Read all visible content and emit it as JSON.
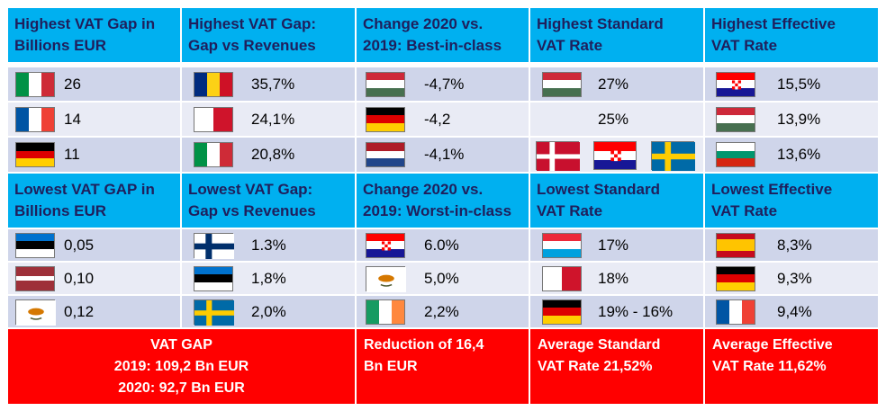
{
  "headers_top": [
    "Highest VAT Gap in\nBillions EUR",
    "Highest VAT Gap:\nGap vs Revenues",
    "Change 2020 vs.\n2019: Best-in-class",
    "Highest Standard\nVAT Rate",
    "Highest Effective\nVAT Rate"
  ],
  "headers_bottom": [
    "Lowest VAT GAP in\nBillions EUR",
    "Lowest VAT Gap:\nGap vs Revenues",
    "Change 2020 vs.\n2019: Worst-in-class",
    "Lowest Standard\nVAT Rate",
    "Lowest Effective\nVAT Rate"
  ],
  "top_rows": [
    [
      {
        "flags": [
          "italy-flag"
        ],
        "value": "26"
      },
      {
        "flags": [
          "romania-flag"
        ],
        "value": "35,7%"
      },
      {
        "flags": [
          "hungary-flag"
        ],
        "value": "-4,7%"
      },
      {
        "flags": [
          "hungary-flag"
        ],
        "value": "27%"
      },
      {
        "flags": [
          "croatia-flag"
        ],
        "value": "15,5%"
      }
    ],
    [
      {
        "flags": [
          "france-flag"
        ],
        "value": "14"
      },
      {
        "flags": [
          "malta-flag"
        ],
        "value": "24,1%"
      },
      {
        "flags": [
          "germany-flag"
        ],
        "value": "-4,2"
      },
      {
        "flags": [],
        "value": "25%"
      },
      {
        "flags": [
          "hungary-flag"
        ],
        "value": "13,9%"
      }
    ],
    [
      {
        "flags": [
          "germany-flag"
        ],
        "value": "11"
      },
      {
        "flags": [
          "italy-flag"
        ],
        "value": "20,8%"
      },
      {
        "flags": [
          "netherlands-flag"
        ],
        "value": "-4,1%"
      },
      {
        "flags": [
          "denmark-flag",
          "croatia-flag",
          "sweden-flag"
        ],
        "value": ""
      },
      {
        "flags": [
          "bulgaria-flag"
        ],
        "value": "13,6%"
      }
    ]
  ],
  "bottom_rows": [
    [
      {
        "flags": [
          "estonia-flag"
        ],
        "value": "0,05"
      },
      {
        "flags": [
          "finland-flag"
        ],
        "value": "1.3%"
      },
      {
        "flags": [
          "croatia-flag"
        ],
        "value": "6.0%"
      },
      {
        "flags": [
          "luxembourg-flag"
        ],
        "value": "17%"
      },
      {
        "flags": [
          "spain-flag"
        ],
        "value": "8,3%"
      }
    ],
    [
      {
        "flags": [
          "latvia-flag"
        ],
        "value": "0,10"
      },
      {
        "flags": [
          "estonia-flag"
        ],
        "value": "1,8%"
      },
      {
        "flags": [
          "cyprus-flag"
        ],
        "value": "5,0%"
      },
      {
        "flags": [
          "malta-flag"
        ],
        "value": "18%"
      },
      {
        "flags": [
          "germany-flag"
        ],
        "value": "9,3%"
      }
    ],
    [
      {
        "flags": [
          "cyprus-flag"
        ],
        "value": "0,12"
      },
      {
        "flags": [
          "sweden-flag"
        ],
        "value": "2,0%"
      },
      {
        "flags": [
          "ireland-flag"
        ],
        "value": "2,2%"
      },
      {
        "flags": [
          "germany-flag"
        ],
        "value": "19% - 16%"
      },
      {
        "flags": [
          "france-flag"
        ],
        "value": "9,4%"
      }
    ]
  ],
  "footer": {
    "vat_gap": "VAT GAP\n2019: 109,2 Bn EUR\n2020: 92,7 Bn EUR",
    "reduction": "Reduction of 16,4\nBn EUR",
    "avg_standard": "Average Standard\nVAT Rate 21,52%",
    "avg_effective": "Average Effective\nVAT Rate 11,62%"
  },
  "colors": {
    "header_bg": "#00b0f0",
    "header_text": "#1f1f5c",
    "row_dark": "#cfd5ea",
    "row_light": "#e9ebf5",
    "footer_bg": "#ff0000",
    "footer_text": "#ffffff"
  }
}
